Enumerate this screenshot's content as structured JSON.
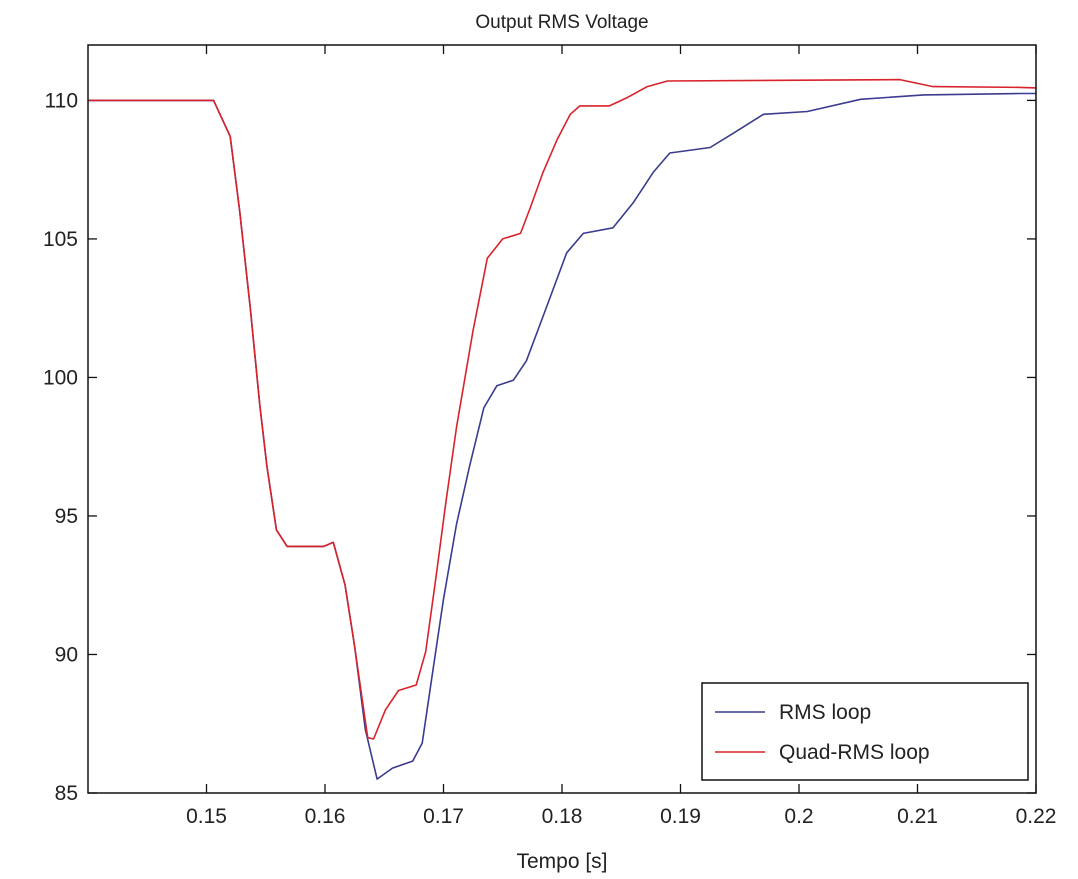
{
  "chart_data": {
    "type": "line",
    "title": "Output RMS Voltage",
    "xlabel": "Tempo [s]",
    "ylabel": "",
    "xlim": [
      0.14,
      0.22
    ],
    "ylim": [
      85,
      112
    ],
    "xticks": [
      0.15,
      0.16,
      0.17,
      0.18,
      0.19,
      0.2,
      0.21,
      0.22
    ],
    "xtick_labels": [
      "0.15",
      "0.16",
      "0.17",
      "0.18",
      "0.19",
      "0.2",
      "0.21",
      "0.22"
    ],
    "yticks": [
      85,
      90,
      95,
      100,
      105,
      110
    ],
    "ytick_labels": [
      "85",
      "90",
      "95",
      "100",
      "105",
      "110"
    ],
    "grid": false,
    "legend_position": "bottom-right",
    "series": [
      {
        "name": "RMS loop",
        "color": "#3b3b8f",
        "x": [
          0.14,
          0.1506,
          0.152,
          0.1528,
          0.1537,
          0.1545,
          0.1551,
          0.1559,
          0.1568,
          0.1599,
          0.1607,
          0.1617,
          0.1625,
          0.1634,
          0.1644,
          0.1657,
          0.1674,
          0.1682,
          0.1691,
          0.17,
          0.1711,
          0.1722,
          0.1734,
          0.1745,
          0.1759,
          0.177,
          0.1784,
          0.1804,
          0.1818,
          0.1843,
          0.186,
          0.1877,
          0.1891,
          0.1925,
          0.1944,
          0.197,
          0.2007,
          0.2052,
          0.2105,
          0.2187,
          0.22
        ],
        "y": [
          110.0,
          110.0,
          108.7,
          106.0,
          102.5,
          99.0,
          96.8,
          94.5,
          93.9,
          93.9,
          94.05,
          92.5,
          90.3,
          87.3,
          85.5,
          85.9,
          86.15,
          86.8,
          89.4,
          92.0,
          94.7,
          96.8,
          98.9,
          99.7,
          99.9,
          100.6,
          102.2,
          104.5,
          105.2,
          105.4,
          106.3,
          107.4,
          108.1,
          108.3,
          108.8,
          109.5,
          109.6,
          110.04,
          110.2,
          110.25,
          110.25
        ]
      },
      {
        "name": "Quad-RMS loop",
        "color": "#d8232a",
        "x": [
          0.14,
          0.1506,
          0.152,
          0.1528,
          0.1537,
          0.1545,
          0.1551,
          0.1559,
          0.1568,
          0.1599,
          0.1607,
          0.1617,
          0.1625,
          0.1636,
          0.1641,
          0.1651,
          0.1662,
          0.1677,
          0.1685,
          0.1694,
          0.1702,
          0.1711,
          0.1725,
          0.1737,
          0.175,
          0.1765,
          0.1773,
          0.1784,
          0.1796,
          0.1807,
          0.1815,
          0.184,
          0.1855,
          0.1872,
          0.1889,
          0.2085,
          0.2113,
          0.2187,
          0.22
        ],
        "y": [
          110.0,
          110.0,
          108.7,
          106.0,
          102.5,
          99.0,
          96.8,
          94.5,
          93.9,
          93.9,
          94.05,
          92.5,
          90.3,
          87.0,
          86.95,
          88.0,
          88.7,
          88.9,
          90.1,
          92.9,
          95.5,
          98.2,
          101.7,
          104.3,
          105.0,
          105.2,
          106.1,
          107.4,
          108.6,
          109.5,
          109.8,
          109.8,
          110.1,
          110.5,
          110.7,
          110.75,
          110.5,
          110.47,
          110.45
        ]
      }
    ]
  }
}
